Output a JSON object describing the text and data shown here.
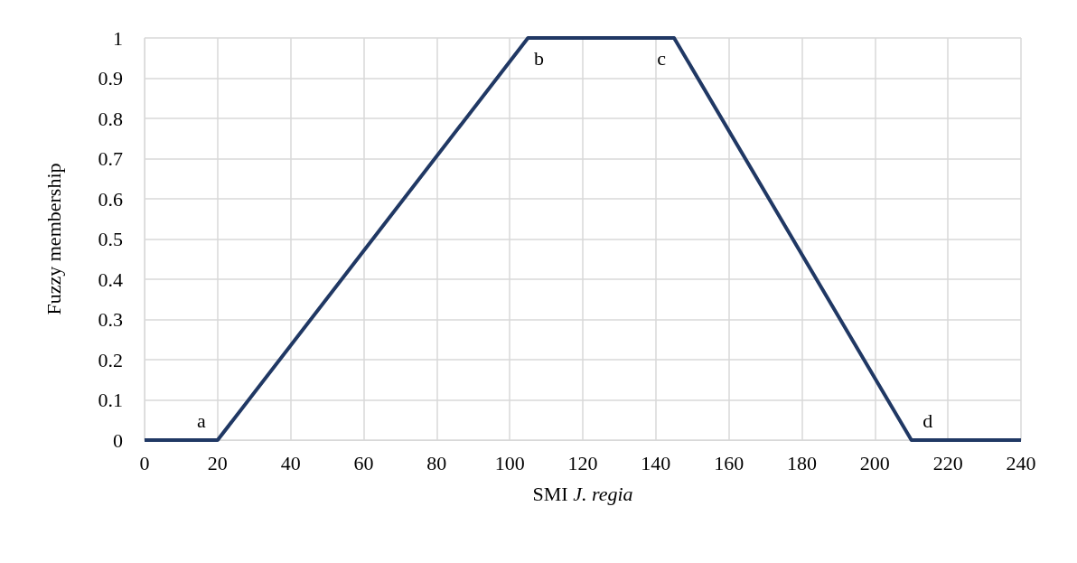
{
  "chart_data": {
    "type": "line",
    "xlabel": "SMI J. regia",
    "ylabel": "Fuzzy membership",
    "x": [
      0,
      20,
      105,
      145,
      210,
      240
    ],
    "series": [
      {
        "color": "#203864",
        "values": [
          0,
          0,
          1,
          1,
          0,
          0
        ]
      }
    ],
    "xlim": [
      0,
      240
    ],
    "xticks": [
      0,
      20,
      40,
      60,
      80,
      100,
      120,
      140,
      160,
      180,
      200,
      220,
      240
    ],
    "ylim": [
      0,
      1
    ],
    "yticks": [
      0,
      0.1,
      0.2,
      0.3,
      0.4,
      0.5,
      0.6,
      0.7,
      0.8,
      0.9,
      1
    ],
    "grid": true,
    "marker": "none",
    "line_style": "solid",
    "annotations": [
      {
        "text": "a",
        "x": 20,
        "y": 0
      },
      {
        "text": "b",
        "x": 105,
        "y": 1
      },
      {
        "text": "c",
        "x": 145,
        "y": 1
      },
      {
        "text": "d",
        "x": 210,
        "y": 0
      }
    ]
  }
}
